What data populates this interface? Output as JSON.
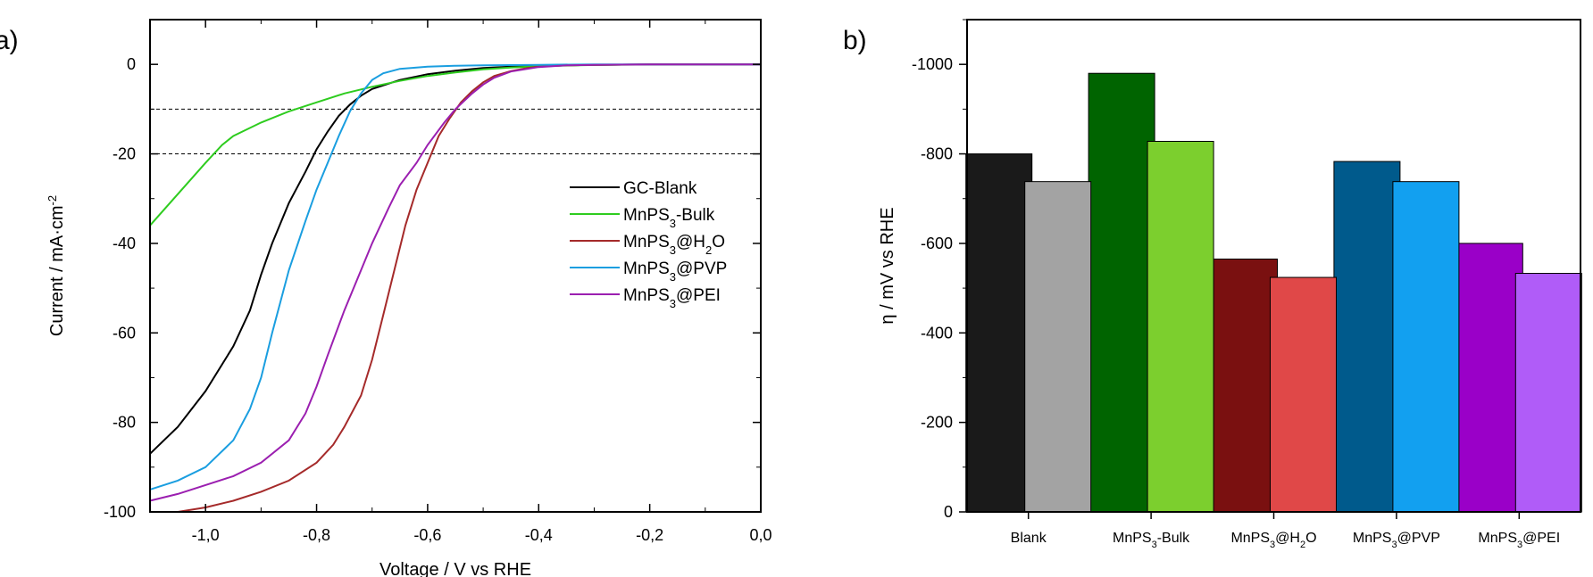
{
  "chart_data": [
    {
      "panel": "a)",
      "type": "line",
      "xlabel": "Voltage / V vs RHE",
      "ylabel": "Current / mA·cm",
      "ylabel_sup": "-2",
      "xlim": [
        -1.1,
        0.0
      ],
      "ylim": [
        -100,
        10
      ],
      "xticks": [
        -1.0,
        -0.8,
        -0.6,
        -0.4,
        -0.2,
        0.0
      ],
      "xtick_labels": [
        "-1,0",
        "-0,8",
        "-0,6",
        "-0,4",
        "-0,2",
        "0,0"
      ],
      "yticks": [
        0,
        -20,
        -40,
        -60,
        -80,
        -100
      ],
      "ytick_labels": [
        "0",
        "-20",
        "-40",
        "-60",
        "-80",
        "-100"
      ],
      "reference_lines": [
        -10,
        -20
      ],
      "legend_position": "right",
      "series": [
        {
          "name": "GC-Blank",
          "label_main": "GC-Blank",
          "label_sub": "",
          "label_tail": "",
          "color": "#000000",
          "x": [
            -1.1,
            -1.05,
            -1.0,
            -0.95,
            -0.92,
            -0.9,
            -0.88,
            -0.85,
            -0.82,
            -0.8,
            -0.78,
            -0.76,
            -0.74,
            -0.72,
            -0.7,
            -0.65,
            -0.6,
            -0.55,
            -0.5,
            -0.45,
            -0.4,
            -0.3,
            -0.2,
            -0.1,
            0.0
          ],
          "y": [
            -87,
            -81,
            -73,
            -63,
            -55,
            -47,
            -40,
            -31,
            -24,
            -19,
            -15,
            -11.5,
            -9,
            -7,
            -5.5,
            -3.5,
            -2.2,
            -1.4,
            -0.8,
            -0.5,
            -0.3,
            -0.1,
            0,
            0,
            0
          ]
        },
        {
          "name": "MnPS3-Bulk",
          "label_main": "MnPS",
          "label_sub": "3",
          "label_tail": "-Bulk",
          "color": "#2ecc1f",
          "x": [
            -1.1,
            -1.05,
            -1.0,
            -0.97,
            -0.95,
            -0.9,
            -0.85,
            -0.8,
            -0.75,
            -0.7,
            -0.65,
            -0.6,
            -0.55,
            -0.5,
            -0.45,
            -0.4,
            -0.3,
            -0.2,
            -0.1,
            0.0
          ],
          "y": [
            -36,
            -29,
            -22,
            -18,
            -16,
            -13,
            -10.5,
            -8.5,
            -6.5,
            -5,
            -3.7,
            -2.6,
            -1.8,
            -1.1,
            -0.7,
            -0.4,
            -0.15,
            -0.05,
            0,
            0
          ]
        },
        {
          "name": "MnPS3@H2O",
          "label_main": "MnPS",
          "label_sub": "3",
          "label_tail": "@H",
          "label_sub2": "2",
          "label_tail2": "O",
          "color": "#a52a2a",
          "x": [
            -1.05,
            -1.0,
            -0.95,
            -0.9,
            -0.85,
            -0.8,
            -0.77,
            -0.75,
            -0.72,
            -0.7,
            -0.68,
            -0.66,
            -0.64,
            -0.62,
            -0.6,
            -0.58,
            -0.56,
            -0.54,
            -0.52,
            -0.5,
            -0.48,
            -0.45,
            -0.42,
            -0.4,
            -0.35,
            -0.3,
            -0.2,
            -0.1,
            0.0
          ],
          "y": [
            -100,
            -99,
            -97.5,
            -95.5,
            -93,
            -89,
            -85,
            -81,
            -74,
            -66,
            -56,
            -46,
            -36,
            -28,
            -22,
            -16,
            -12,
            -8.5,
            -6,
            -4,
            -2.6,
            -1.5,
            -0.8,
            -0.5,
            -0.2,
            -0.1,
            0,
            0,
            0
          ]
        },
        {
          "name": "MnPS3@PVP",
          "label_main": "MnPS",
          "label_sub": "3",
          "label_tail": "@PVP",
          "color": "#1a9ee0",
          "x": [
            -1.1,
            -1.05,
            -1.0,
            -0.95,
            -0.92,
            -0.9,
            -0.88,
            -0.85,
            -0.82,
            -0.8,
            -0.78,
            -0.76,
            -0.74,
            -0.72,
            -0.7,
            -0.68,
            -0.65,
            -0.6,
            -0.55,
            -0.5,
            -0.4,
            -0.3,
            -0.2,
            -0.1,
            0.0
          ],
          "y": [
            -95,
            -93,
            -90,
            -84,
            -77,
            -70,
            -60,
            -46,
            -35,
            -28,
            -22,
            -16,
            -10.5,
            -6.5,
            -3.5,
            -2,
            -1,
            -0.5,
            -0.3,
            -0.2,
            -0.1,
            0,
            0,
            0,
            0
          ]
        },
        {
          "name": "MnPS3@PEI",
          "label_main": "MnPS",
          "label_sub": "3",
          "label_tail": "@PEI",
          "color": "#9b1fb0",
          "x": [
            -1.1,
            -1.05,
            -1.0,
            -0.95,
            -0.9,
            -0.85,
            -0.82,
            -0.8,
            -0.78,
            -0.75,
            -0.72,
            -0.7,
            -0.67,
            -0.65,
            -0.62,
            -0.6,
            -0.57,
            -0.55,
            -0.52,
            -0.5,
            -0.48,
            -0.45,
            -0.4,
            -0.35,
            -0.3,
            -0.2,
            -0.1,
            0.0
          ],
          "y": [
            -97.5,
            -96,
            -94,
            -92,
            -89,
            -84,
            -78,
            -72,
            -65,
            -55,
            -46,
            -40,
            -32,
            -27,
            -22,
            -18,
            -13,
            -10,
            -6.5,
            -4.5,
            -3,
            -1.6,
            -0.6,
            -0.2,
            -0.1,
            0,
            0,
            0
          ]
        }
      ]
    },
    {
      "panel": "b)",
      "type": "bar",
      "ylabel": "η / mV vs RHE",
      "ylim": [
        0,
        -1100
      ],
      "yticks": [
        0,
        -200,
        -400,
        -600,
        -800,
        -1000
      ],
      "ytick_labels": [
        "0",
        "-200",
        "-400",
        "-600",
        "-800",
        "-1000"
      ],
      "categories": [
        {
          "label_main": "Blank",
          "label_sub": "",
          "label_tail": ""
        },
        {
          "label_main": "MnPS",
          "label_sub": "3",
          "label_tail": "-Bulk"
        },
        {
          "label_main": "MnPS",
          "label_sub": "3",
          "label_tail": "@H",
          "label_sub2": "2",
          "label_tail2": "O"
        },
        {
          "label_main": "MnPS",
          "label_sub": "3",
          "label_tail": "@PVP"
        },
        {
          "label_main": "MnPS",
          "label_sub": "3",
          "label_tail": "@PEI"
        }
      ],
      "series": [
        {
          "values": [
            -800,
            -980,
            -565,
            -783,
            -600
          ],
          "colors": [
            "#1a1a1a",
            "#006400",
            "#7a1010",
            "#005a8c",
            "#9a00c8"
          ]
        },
        {
          "values": [
            -738,
            -828,
            -524,
            -738,
            -533
          ],
          "colors": [
            "#a3a3a3",
            "#7ccf2e",
            "#e04848",
            "#12a0f0",
            "#b05cf8"
          ]
        }
      ]
    }
  ]
}
